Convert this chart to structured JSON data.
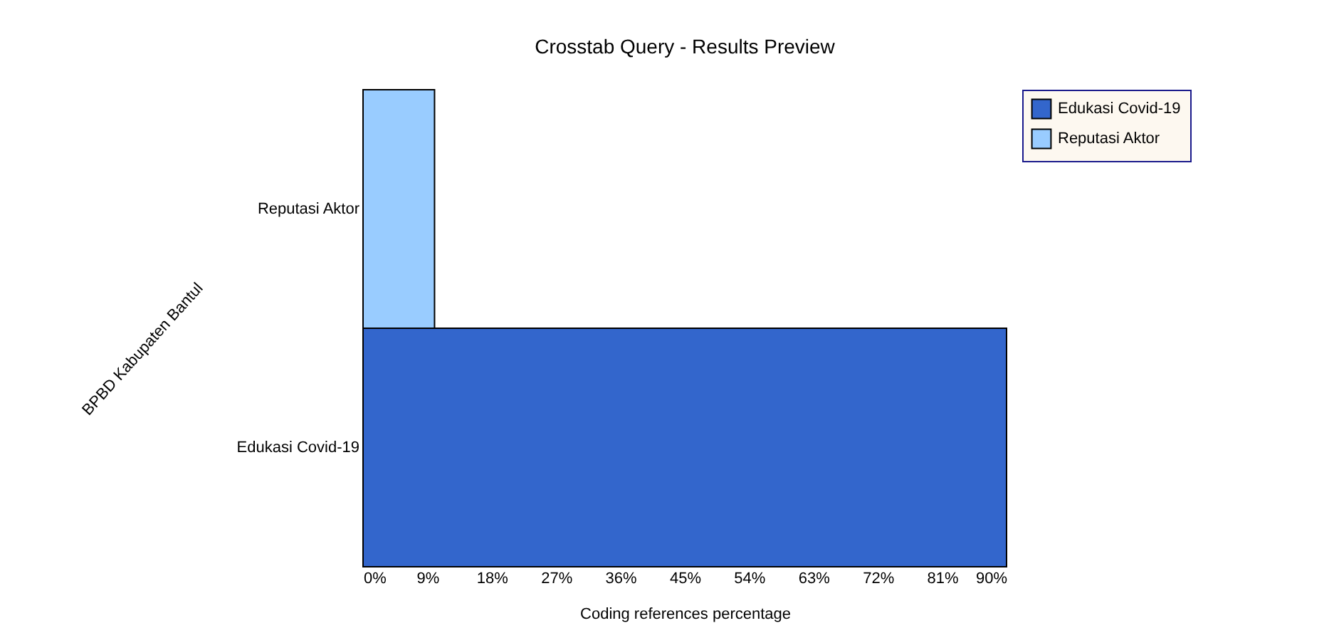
{
  "chart_data": {
    "type": "bar",
    "orientation": "horizontal",
    "title": "Crosstab Query - Results Preview",
    "xlabel": "Coding references percentage",
    "ylabel": "BPBD Kabupaten Bantul",
    "categories": [
      "Reputasi Aktor",
      "Edukasi Covid-19"
    ],
    "series": [
      {
        "name": "Edukasi Covid-19",
        "color": "#3366cc",
        "values": [
          null,
          90
        ]
      },
      {
        "name": "Reputasi Aktor",
        "color": "#99ccff",
        "values": [
          10,
          null
        ]
      }
    ],
    "xlim": [
      0,
      90
    ],
    "xticks": [
      {
        "value": 0,
        "label": "0%"
      },
      {
        "value": 9,
        "label": "9%"
      },
      {
        "value": 18,
        "label": "18%"
      },
      {
        "value": 27,
        "label": "27%"
      },
      {
        "value": 36,
        "label": "36%"
      },
      {
        "value": 45,
        "label": "45%"
      },
      {
        "value": 54,
        "label": "54%"
      },
      {
        "value": 63,
        "label": "63%"
      },
      {
        "value": 72,
        "label": "72%"
      },
      {
        "value": 81,
        "label": "81%"
      },
      {
        "value": 90,
        "label": "90%"
      }
    ],
    "legend": "right",
    "grid": false
  }
}
